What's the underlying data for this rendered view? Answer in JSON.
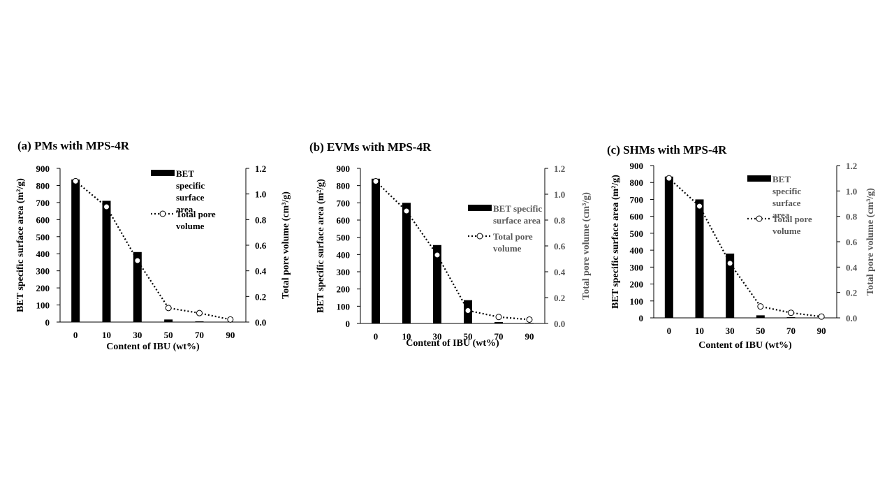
{
  "chart_data": [
    {
      "type": "bar",
      "title": "(a) PMs with MPS-4R",
      "xlabel": "Content of IBU (wt%)",
      "ylabel": "BET specific surface area (m²/g)",
      "y2label": "Total pore volume (cm³/g)",
      "categories": [
        "0",
        "10",
        "30",
        "50",
        "70",
        "90"
      ],
      "ylim": [
        0,
        900
      ],
      "y2lim": [
        0,
        1.2
      ],
      "yticks": [
        "0",
        "100",
        "200",
        "300",
        "400",
        "500",
        "600",
        "700",
        "800",
        "900"
      ],
      "y2ticks": [
        "0.0",
        "0.2",
        "0.4",
        "0.6",
        "0.8",
        "1.0",
        "1.2"
      ],
      "series": [
        {
          "name": "BET specific surface area",
          "kind": "bar",
          "axis": "left",
          "values": [
            835,
            710,
            410,
            15,
            4,
            2
          ]
        },
        {
          "name": "Total pore volume",
          "kind": "line",
          "axis": "right",
          "values": [
            1.1,
            0.9,
            0.48,
            0.11,
            0.07,
            0.02
          ]
        }
      ],
      "legend": {
        "placement": "top-right",
        "bar_label": "BET specific surface area",
        "line_label": "Total pore volume"
      },
      "colors": {
        "bar": "#000000",
        "line": "#000000",
        "marker_fill": "#ffffff",
        "axis_text_left": "#000000",
        "axis_text_right": "#000000",
        "legend_text": "#000000"
      },
      "grid": false
    },
    {
      "type": "bar",
      "title": "(b) EVMs with MPS-4R",
      "xlabel": "Content of IBU (wt%)",
      "ylabel": "BET specific surface area (m²/g)",
      "y2label": "Total pore volume (cm³/g)",
      "categories": [
        "0",
        "10",
        "30",
        "50",
        "70",
        "90"
      ],
      "ylim": [
        0,
        900
      ],
      "y2lim": [
        0,
        1.2
      ],
      "yticks": [
        "0",
        "100",
        "200",
        "300",
        "400",
        "500",
        "600",
        "700",
        "800",
        "900"
      ],
      "y2ticks": [
        "0.0",
        "0.2",
        "0.4",
        "0.6",
        "0.8",
        "1.0",
        "1.2"
      ],
      "series": [
        {
          "name": "BET specific surface area",
          "kind": "bar",
          "axis": "left",
          "values": [
            840,
            700,
            455,
            135,
            8,
            3
          ]
        },
        {
          "name": "Total pore volume",
          "kind": "line",
          "axis": "right",
          "values": [
            1.1,
            0.87,
            0.53,
            0.1,
            0.05,
            0.03
          ]
        }
      ],
      "legend": {
        "placement": "right",
        "bar_label": "BET specific surface area",
        "line_label": "Total pore volume"
      },
      "colors": {
        "bar": "#000000",
        "line": "#000000",
        "marker_fill": "#ffffff",
        "axis_text_left": "#000000",
        "axis_text_right": "#595959",
        "legend_text": "#595959"
      },
      "grid": false
    },
    {
      "type": "bar",
      "title": "(c) SHMs with MPS-4R",
      "xlabel": "Content of IBU (wt%)",
      "ylabel": "BET specific surface area (m²/g)",
      "y2label": "Total pore volume (cm³/g)",
      "categories": [
        "0",
        "10",
        "30",
        "50",
        "70",
        "90"
      ],
      "ylim": [
        0,
        900
      ],
      "y2lim": [
        0,
        1.2
      ],
      "yticks": [
        "0",
        "100",
        "200",
        "300",
        "400",
        "500",
        "600",
        "700",
        "800",
        "900"
      ],
      "y2ticks": [
        "0.0",
        "0.2",
        "0.4",
        "0.6",
        "0.8",
        "1.0",
        "1.2"
      ],
      "series": [
        {
          "name": "BET specific surface area",
          "kind": "bar",
          "axis": "left",
          "values": [
            835,
            700,
            380,
            15,
            4,
            2
          ]
        },
        {
          "name": "Total pore volume",
          "kind": "line",
          "axis": "right",
          "values": [
            1.1,
            0.88,
            0.43,
            0.09,
            0.04,
            0.01
          ]
        }
      ],
      "legend": {
        "placement": "top-right",
        "bar_label": "BET specific surface area",
        "line_label": "Total pore volume"
      },
      "colors": {
        "bar": "#000000",
        "line": "#000000",
        "marker_fill": "#ffffff",
        "axis_text_left": "#000000",
        "axis_text_right": "#595959",
        "legend_text": "#595959"
      },
      "grid": false
    }
  ]
}
